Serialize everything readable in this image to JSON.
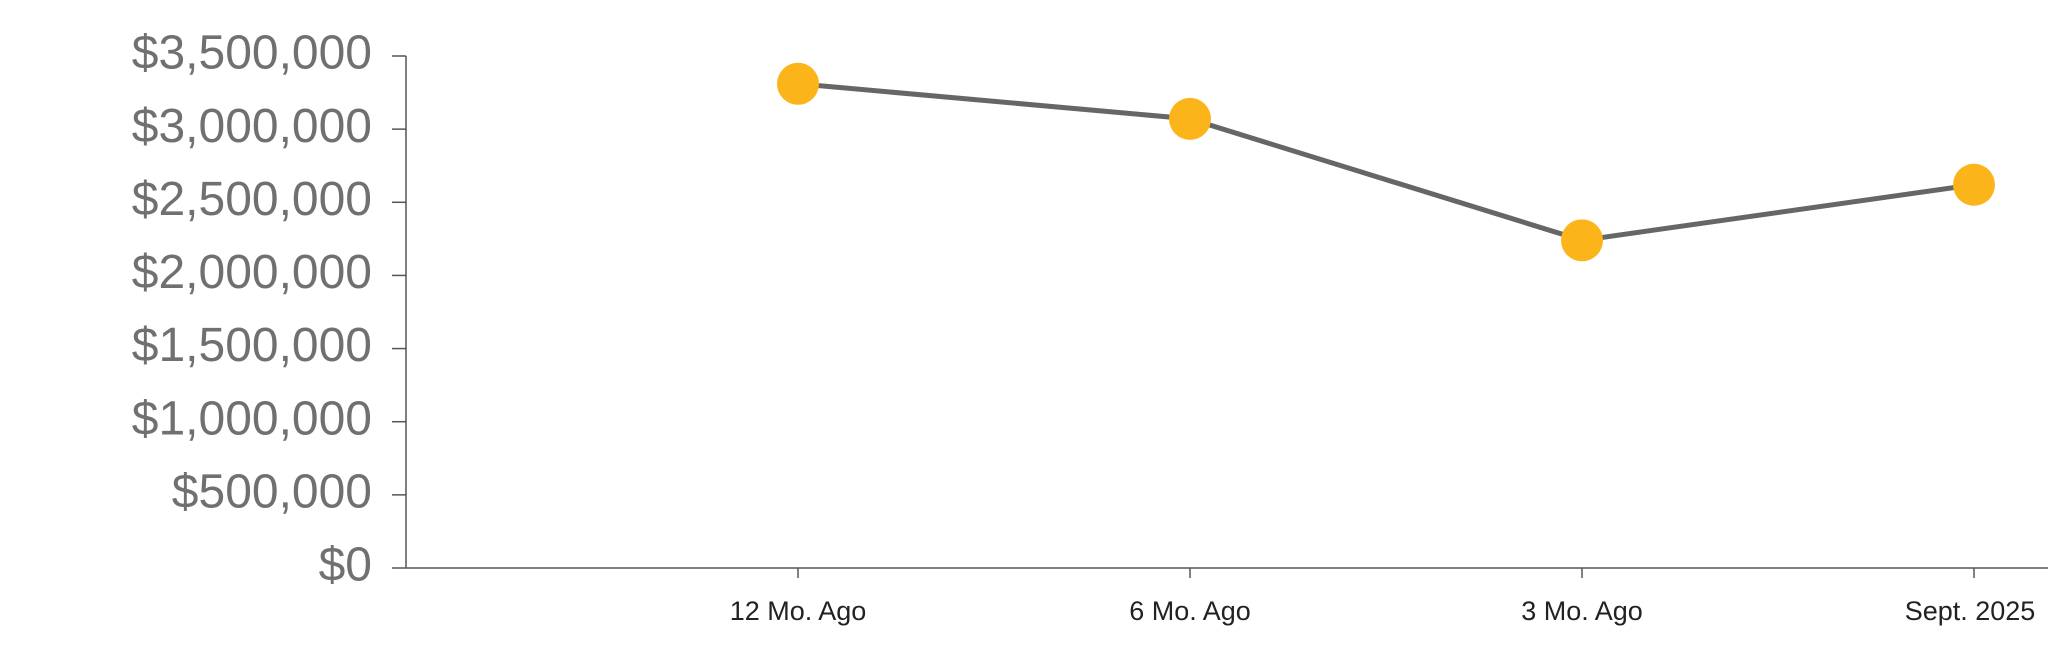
{
  "chart_data": {
    "type": "line",
    "categories": [
      "12 Mo. Ago",
      "6 Mo. Ago",
      "3 Mo. Ago",
      "Sept. 2025"
    ],
    "series": [
      {
        "values": [
          3310000,
          3070000,
          2240000,
          2620000
        ],
        "color": "#666666",
        "marker_color": "#fbb51b"
      }
    ],
    "ylim": [
      0,
      3500000
    ],
    "yticks": [
      {
        "value": 0,
        "label": "$0"
      },
      {
        "value": 500000,
        "label": "$500,000"
      },
      {
        "value": 1000000,
        "label": "$1,000,000"
      },
      {
        "value": 1500000,
        "label": "$1,500,000"
      },
      {
        "value": 2000000,
        "label": "$2,000,000"
      },
      {
        "value": 2500000,
        "label": "$2,500,000"
      },
      {
        "value": 3000000,
        "label": "$3,000,000"
      },
      {
        "value": 3500000,
        "label": "$3,500,000"
      }
    ]
  }
}
